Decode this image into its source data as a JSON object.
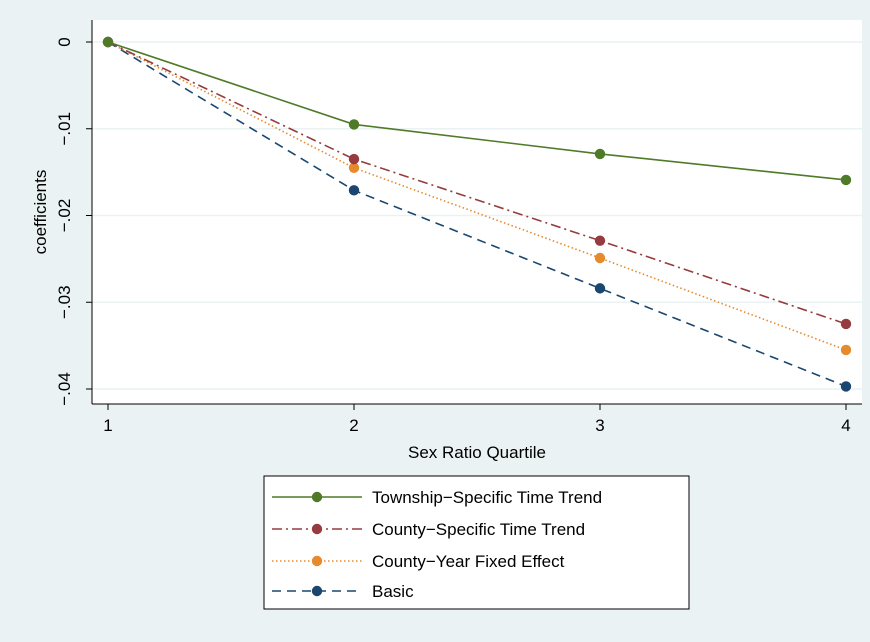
{
  "chart_data": {
    "type": "line",
    "x": [
      1,
      2,
      3,
      4
    ],
    "xlabel": "Sex Ratio Quartile",
    "ylabel": "coefficients",
    "xlim": [
      1,
      4
    ],
    "ylim": [
      -0.04,
      0
    ],
    "x_ticks": [
      1,
      2,
      3,
      4
    ],
    "x_tick_labels": [
      "1",
      "2",
      "3",
      "4"
    ],
    "y_ticks": [
      0,
      -0.01,
      -0.02,
      -0.03,
      -0.04
    ],
    "y_tick_labels": [
      "0",
      "−.01",
      "−.02",
      "−.03",
      "−.04"
    ],
    "grid": true,
    "legend_position": "bottom",
    "colors": {
      "page_background": "#eaf2f3",
      "plot_background": "#ffffff",
      "grid": "#eaf2f3"
    },
    "series": [
      {
        "name": "Township−Specific Time Trend",
        "values": [
          0,
          -0.0095,
          -0.0129,
          -0.0159
        ],
        "color": "#4f7a28",
        "line_style": "solid"
      },
      {
        "name": "County−Specific Time Trend",
        "values": [
          0,
          -0.0135,
          -0.0229,
          -0.0325
        ],
        "color": "#963b3f",
        "line_style": "dash-dot"
      },
      {
        "name": "County−Year Fixed Effect",
        "values": [
          0,
          -0.0145,
          -0.0249,
          -0.0355
        ],
        "color": "#e68a2e",
        "line_style": "dotted"
      },
      {
        "name": "Basic",
        "values": [
          0,
          -0.0171,
          -0.0284,
          -0.0397
        ],
        "color": "#1a466f",
        "line_style": "dashed"
      }
    ]
  }
}
